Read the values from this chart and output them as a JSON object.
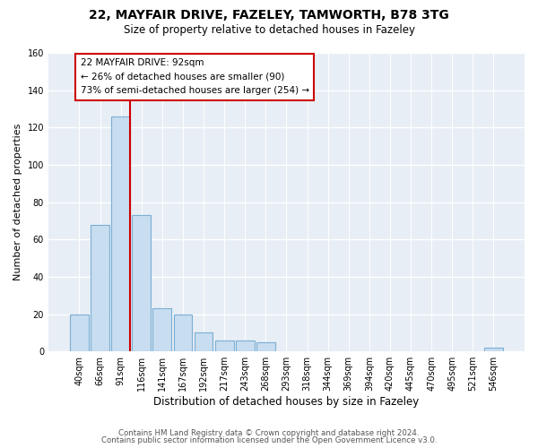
{
  "title1": "22, MAYFAIR DRIVE, FAZELEY, TAMWORTH, B78 3TG",
  "title2": "Size of property relative to detached houses in Fazeley",
  "xlabel": "Distribution of detached houses by size in Fazeley",
  "ylabel": "Number of detached properties",
  "bar_values": [
    20,
    68,
    126,
    73,
    23,
    20,
    10,
    6,
    6,
    5,
    0,
    0,
    0,
    0,
    0,
    0,
    0,
    0,
    0,
    0,
    2
  ],
  "bar_labels": [
    "40sqm",
    "66sqm",
    "91sqm",
    "116sqm",
    "141sqm",
    "167sqm",
    "192sqm",
    "217sqm",
    "243sqm",
    "268sqm",
    "293sqm",
    "318sqm",
    "344sqm",
    "369sqm",
    "394sqm",
    "420sqm",
    "445sqm",
    "470sqm",
    "495sqm",
    "521sqm",
    "546sqm"
  ],
  "bar_color": "#c8ddf0",
  "bar_edge_color": "#7aafd4",
  "vline_x_index": 2,
  "vline_color": "#cc0000",
  "annotation_title": "22 MAYFAIR DRIVE: 92sqm",
  "annotation_line1": "← 26% of detached houses are smaller (90)",
  "annotation_line2": "73% of semi-detached houses are larger (254) →",
  "annotation_box_color": "#cc0000",
  "ylim": [
    0,
    160
  ],
  "yticks": [
    0,
    20,
    40,
    60,
    80,
    100,
    120,
    140,
    160
  ],
  "background_color": "#ffffff",
  "plot_bg_color": "#e8eef5",
  "grid_color": "#ffffff",
  "footer1": "Contains HM Land Registry data © Crown copyright and database right 2024.",
  "footer2": "Contains public sector information licensed under the Open Government Licence v3.0."
}
